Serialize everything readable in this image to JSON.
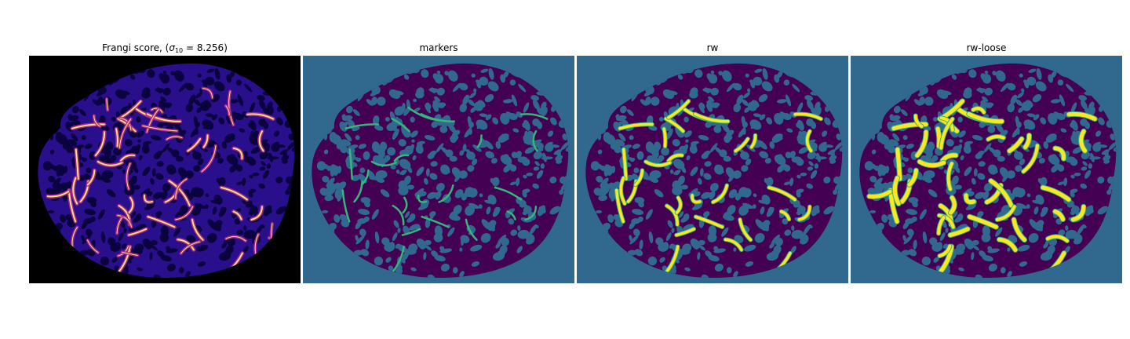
{
  "panels": [
    {
      "id": "frangi",
      "title_prefix": "Frangi score, (",
      "title_sigma": "σ",
      "title_subscript": "10",
      "title_suffix": " = 8.256)",
      "colors": {
        "background": "#000000",
        "tissue": "#2a0f8c",
        "texture": "#0b0340",
        "ridge_lo": "#b22a8a",
        "ridge_hi": "#fce27a"
      }
    },
    {
      "id": "markers",
      "title": "markers",
      "colors": {
        "background": "#31688e",
        "tissue": "#440154",
        "texture": "#31688e",
        "label": "#35b779"
      }
    },
    {
      "id": "rw",
      "title": "rw",
      "colors": {
        "background": "#31688e",
        "tissue": "#440154",
        "texture": "#31688e",
        "label": "#fde725",
        "label_edge": "#35b779"
      }
    },
    {
      "id": "rw-loose",
      "title": "rw-loose",
      "colors": {
        "background": "#31688e",
        "tissue": "#440154",
        "texture": "#31688e",
        "label": "#fde725",
        "label_edge": "#35b779"
      }
    }
  ]
}
